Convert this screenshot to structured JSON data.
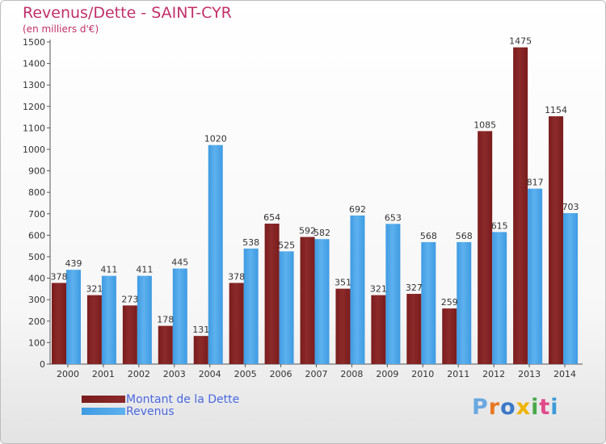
{
  "title": "Revenus/Dette - SAINT-CYR",
  "subtitle": "(en milliers d'€)",
  "colors": {
    "debt": "#7a1c1c",
    "debt_light": "#8c2a2a",
    "revenue": "#3f9be2",
    "revenue_light": "#5db1ee",
    "title": "#c0306a",
    "legend_text": "#4a68e0"
  },
  "legend": {
    "debt_label": "Montant de la Dette",
    "revenue_label": "Revenus"
  },
  "logo": {
    "letters": [
      "P",
      "r",
      "o",
      "x",
      "i",
      "t",
      "i"
    ],
    "letter_colors": [
      "#6aa8e0",
      "#e87722",
      "#3c78c8",
      "#f0b400",
      "#4aa84a",
      "#e04a8a",
      "#3c9ad8"
    ]
  },
  "chart_data": {
    "type": "bar",
    "categories": [
      "2000",
      "2001",
      "2002",
      "2003",
      "2004",
      "2005",
      "2006",
      "2007",
      "2008",
      "2009",
      "2010",
      "2011",
      "2012",
      "2013",
      "2014"
    ],
    "series": [
      {
        "name": "Montant de la Dette",
        "values": [
          378,
          321,
          273,
          178,
          131,
          378,
          654,
          592,
          351,
          321,
          327,
          259,
          1085,
          1475,
          1154
        ]
      },
      {
        "name": "Revenus",
        "values": [
          439,
          411,
          411,
          445,
          1020,
          538,
          525,
          582,
          692,
          653,
          568,
          568,
          615,
          817,
          703
        ]
      }
    ],
    "ylim": [
      0,
      1500
    ],
    "yticks": [
      0,
      100,
      200,
      300,
      400,
      500,
      600,
      700,
      800,
      900,
      1000,
      1100,
      1200,
      1300,
      1400,
      1500
    ],
    "grid": false,
    "legend_position": "bottom-left"
  }
}
